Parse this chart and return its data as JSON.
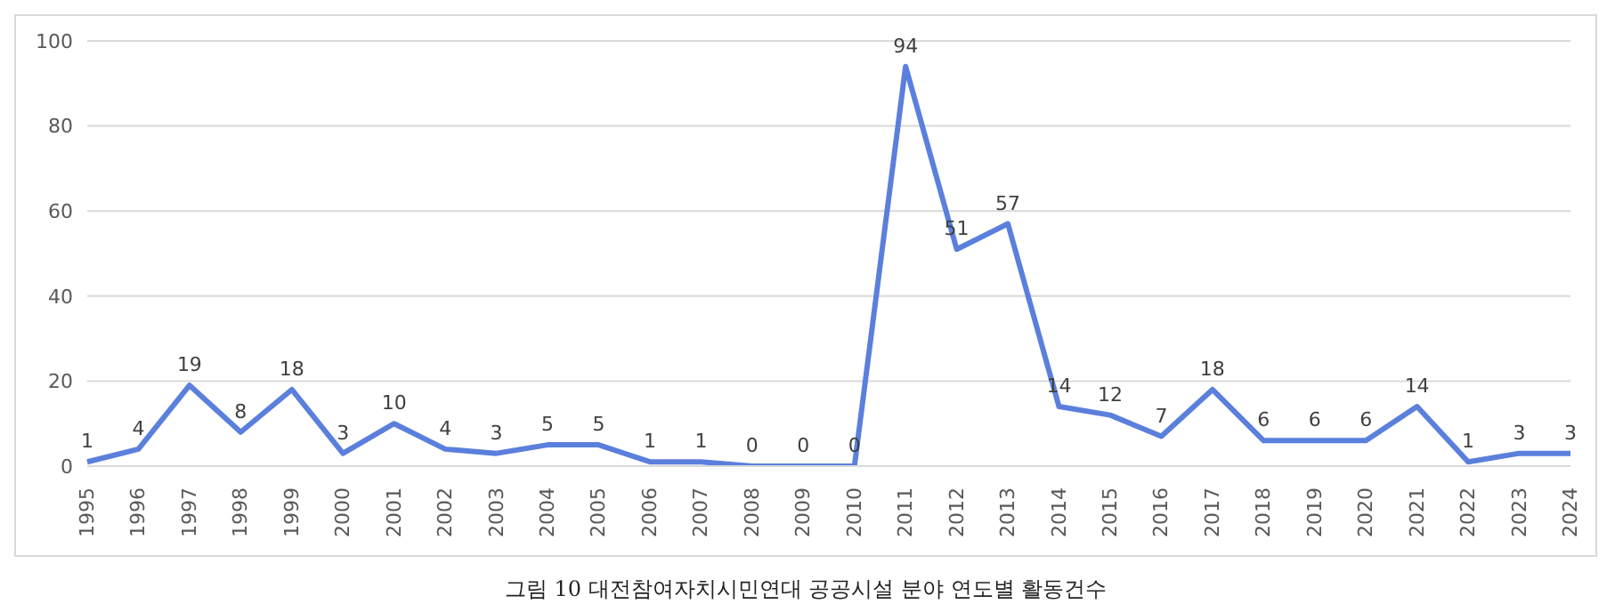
{
  "chart_data": {
    "type": "line",
    "categories": [
      "1995",
      "1996",
      "1997",
      "1998",
      "1999",
      "2000",
      "2001",
      "2002",
      "2003",
      "2004",
      "2005",
      "2006",
      "2007",
      "2008",
      "2009",
      "2010",
      "2011",
      "2012",
      "2013",
      "2014",
      "2015",
      "2016",
      "2017",
      "2018",
      "2019",
      "2020",
      "2021",
      "2022",
      "2023",
      "2024"
    ],
    "values": [
      1,
      4,
      19,
      8,
      18,
      3,
      10,
      4,
      3,
      5,
      5,
      1,
      1,
      0,
      0,
      0,
      94,
      51,
      57,
      14,
      12,
      7,
      18,
      6,
      6,
      6,
      14,
      1,
      3,
      3
    ],
    "color": "#5b7fdc",
    "ylim": [
      0,
      100
    ],
    "yticks": [
      0,
      20,
      40,
      60,
      80,
      100
    ],
    "grid": "y",
    "data_labels": true,
    "legend": false,
    "marker": "none",
    "line_style": "solid",
    "annotations": [
      "그림 10  대전참여자치시민연대 공공시설 분야 연도별 활동건수"
    ]
  }
}
